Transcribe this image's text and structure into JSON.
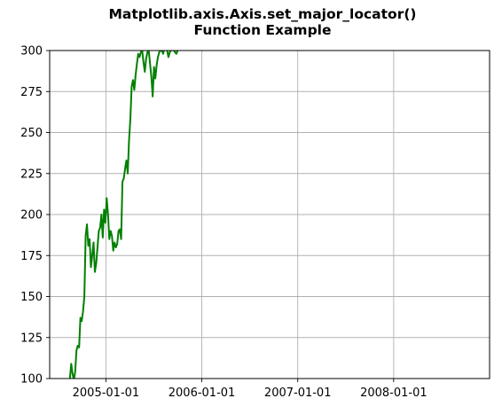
{
  "chart_data": {
    "type": "line",
    "title": [
      "Matplotlib.axis.Axis.set_major_locator()",
      "Function Example"
    ],
    "xlabel": "",
    "ylabel": "",
    "xlim": [
      "2004-06-01",
      "2008-12-31"
    ],
    "ylim": [
      100,
      300
    ],
    "grid": true,
    "x_ticks": [
      "2005-01-01",
      "2006-01-01",
      "2007-01-01",
      "2008-01-01"
    ],
    "y_ticks": [
      100,
      125,
      150,
      175,
      200,
      225,
      250,
      275,
      300
    ],
    "colors": {
      "series": "#008000",
      "grid": "#b0b0b0",
      "frame": "#000000"
    },
    "series": [
      {
        "x": [
          "2004-08-17",
          "2004-08-22",
          "2004-08-27",
          "2004-09-01",
          "2004-09-06",
          "2004-09-11",
          "2004-09-16",
          "2004-09-21",
          "2004-09-26",
          "2004-10-01",
          "2004-10-06",
          "2004-10-11",
          "2004-10-16",
          "2004-10-21",
          "2004-10-26",
          "2004-10-31",
          "2004-11-05",
          "2004-11-10",
          "2004-11-15",
          "2004-11-20",
          "2004-11-25",
          "2004-11-30",
          "2004-12-05",
          "2004-12-10",
          "2004-12-15",
          "2004-12-20",
          "2004-12-25",
          "2004-12-30",
          "2005-01-04",
          "2005-01-09",
          "2005-01-14",
          "2005-01-19",
          "2005-01-24",
          "2005-01-29",
          "2005-02-03",
          "2005-02-08",
          "2005-02-13",
          "2005-02-18",
          "2005-02-23",
          "2005-02-28",
          "2005-03-05",
          "2005-03-10",
          "2005-03-15",
          "2005-03-20",
          "2005-03-25",
          "2005-03-30",
          "2005-04-04",
          "2005-04-09",
          "2005-04-14",
          "2005-04-19",
          "2005-04-24",
          "2005-04-29",
          "2005-05-04",
          "2005-05-09",
          "2005-05-14",
          "2005-05-19",
          "2005-05-24",
          "2005-05-29",
          "2005-06-03",
          "2005-06-08",
          "2005-06-13",
          "2005-06-18",
          "2005-06-23",
          "2005-06-28",
          "2005-07-03",
          "2005-07-08",
          "2005-07-13",
          "2005-07-18",
          "2005-07-23",
          "2005-07-28",
          "2005-08-02",
          "2005-08-07",
          "2005-08-12",
          "2005-08-17",
          "2005-08-22",
          "2005-08-27",
          "2005-09-01",
          "2005-09-06",
          "2005-09-11",
          "2005-09-16",
          "2005-09-21",
          "2005-09-26",
          "2005-10-01",
          "2005-10-06"
        ],
        "y": [
          100,
          109,
          103,
          99,
          104,
          117,
          120,
          119,
          137,
          135,
          141,
          150,
          187,
          194,
          181,
          185,
          168,
          175,
          183,
          165,
          170,
          180,
          190,
          192,
          200,
          186,
          203,
          195,
          210,
          200,
          185,
          190,
          187,
          178,
          183,
          180,
          182,
          190,
          191,
          185,
          220,
          222,
          228,
          233,
          225,
          245,
          258,
          278,
          282,
          276,
          285,
          292,
          298,
          296,
          299,
          300,
          293,
          287,
          295,
          299,
          300,
          292,
          284,
          272,
          290,
          283,
          291,
          296,
          299,
          300,
          300,
          298,
          302,
          301,
          300,
          296,
          299,
          300,
          301,
          300,
          299,
          298,
          300,
          301
        ]
      }
    ]
  }
}
